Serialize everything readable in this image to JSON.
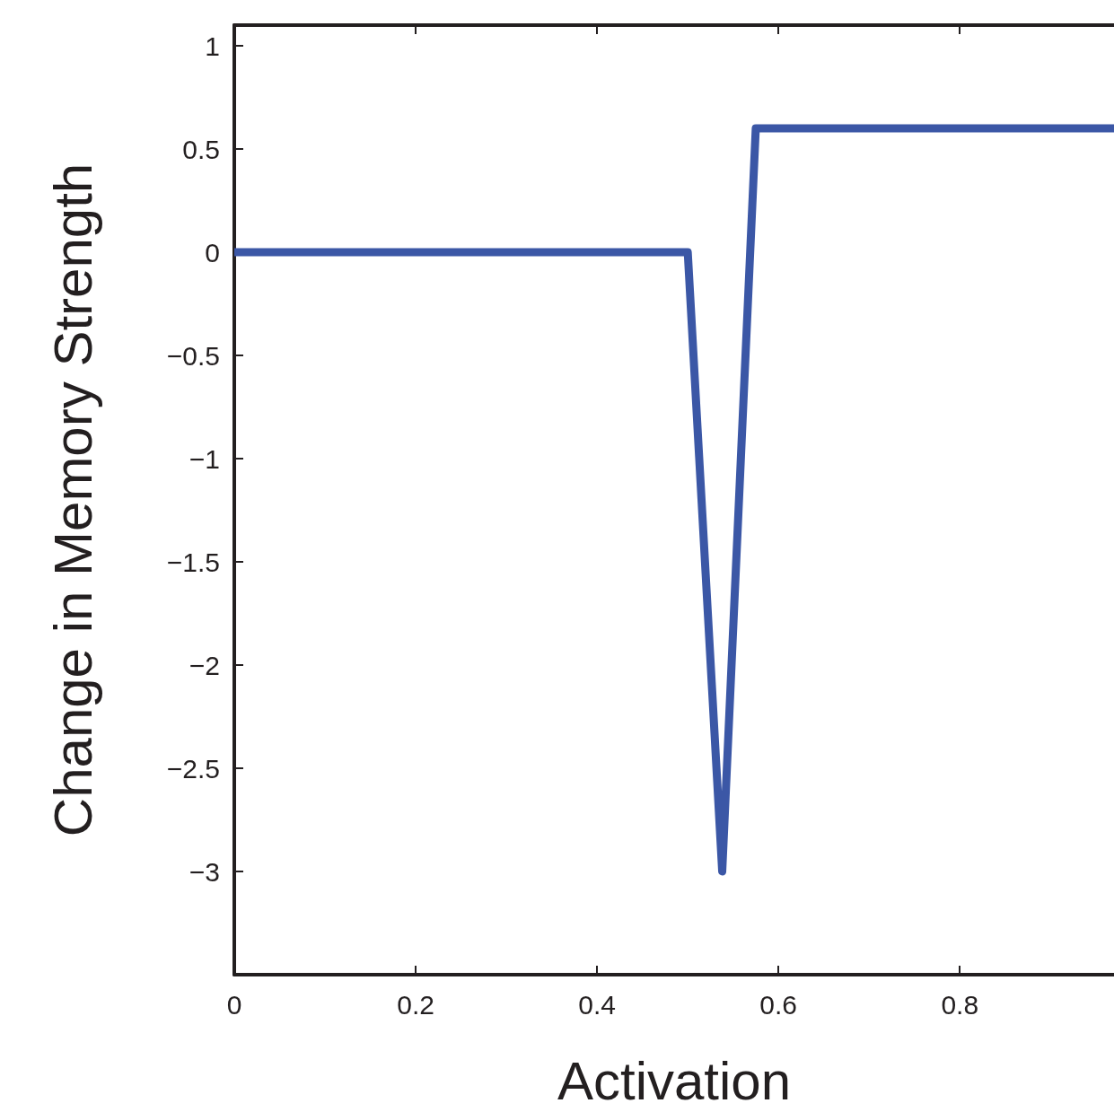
{
  "chart_data": {
    "type": "line",
    "xlabel": "Activation",
    "ylabel": "Change in Memory Strength",
    "x": [
      0,
      0.5,
      0.538,
      0.575,
      0.97
    ],
    "series": [
      {
        "color": "#3b57a6",
        "values": [
          0,
          0,
          -3,
          0.6,
          0.6
        ]
      }
    ],
    "xlim": [
      0,
      0.97
    ],
    "xticks": [
      0,
      0.2,
      0.4,
      0.6,
      0.8
    ],
    "ylim": [
      -3.5,
      1.1
    ],
    "yticks": [
      1,
      0.5,
      0,
      {
        "value": -0.5,
        "label": "−0.5"
      },
      {
        "value": -1,
        "label": "−1"
      },
      {
        "value": -1.5,
        "label": "−1.5"
      },
      {
        "value": -2,
        "label": "−2"
      },
      {
        "value": -2.5,
        "label": "−2.5"
      },
      {
        "value": -3,
        "label": "−3"
      }
    ],
    "grid": false,
    "marker": "none",
    "line_style": "solid"
  }
}
